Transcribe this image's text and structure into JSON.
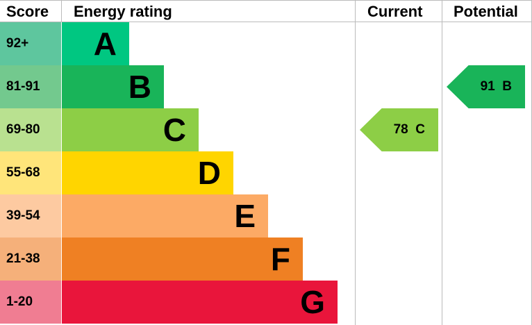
{
  "chart_data": {
    "type": "bar",
    "headers": {
      "score": "Score",
      "rating": "Energy rating",
      "current": "Current",
      "potential": "Potential"
    },
    "bands": [
      {
        "score": "92+",
        "letter": "A",
        "color": "#00c781",
        "score_color": "#5ec69e"
      },
      {
        "score": "81-91",
        "letter": "B",
        "color": "#19b459",
        "score_color": "#73c98e"
      },
      {
        "score": "69-80",
        "letter": "C",
        "color": "#8dce46",
        "score_color": "#b9e190"
      },
      {
        "score": "55-68",
        "letter": "D",
        "color": "#ffd500",
        "score_color": "#ffe57a"
      },
      {
        "score": "39-54",
        "letter": "E",
        "color": "#fcaa65",
        "score_color": "#fdcaa1"
      },
      {
        "score": "21-38",
        "letter": "F",
        "color": "#ef8023",
        "score_color": "#f5b07a"
      },
      {
        "score": "1-20",
        "letter": "G",
        "color": "#e9153b",
        "score_color": "#f07d92"
      }
    ],
    "current": {
      "value": 78,
      "letter": "C",
      "label": "78  C",
      "color": "#8dce46"
    },
    "potential": {
      "value": 91,
      "letter": "B",
      "label": "91  B",
      "color": "#19b459"
    }
  }
}
